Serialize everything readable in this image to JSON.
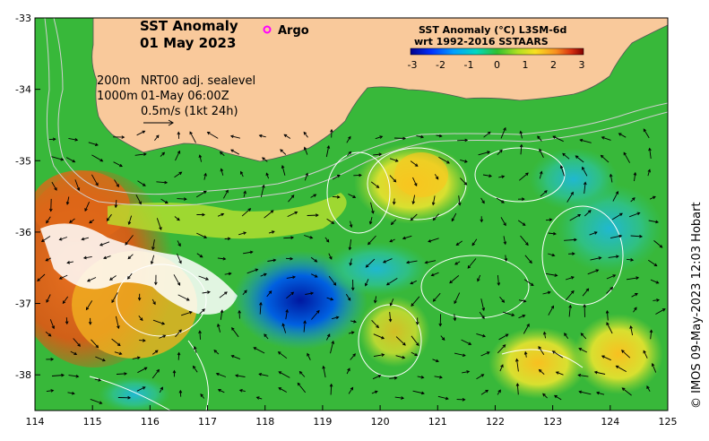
{
  "title_line1": "SST Anomaly",
  "title_line2": "01 May 2023",
  "argo_label": "Argo",
  "colorbar": {
    "title_line1": "SST Anomaly (°C) L3SM-6d",
    "title_line2": "wrt 1992-2016 SSTAARS",
    "ticks": [
      "-3",
      "-2",
      "-1",
      "0",
      "1",
      "2",
      "3"
    ],
    "range": [
      -3,
      3
    ]
  },
  "legend": {
    "depth_200": "200m",
    "depth_1000": "1000m",
    "sealevel_label": "NRT00 adj. sealevel",
    "time_label": "01-May 06:00Z",
    "scale_label": "0.5m/s (1kt 24h)"
  },
  "credit": "© IMOS 09-May-2023 12:03 Hobart",
  "axes": {
    "x_ticks": [
      "114",
      "115",
      "116",
      "117",
      "118",
      "119",
      "120",
      "121",
      "122",
      "123",
      "124",
      "125"
    ],
    "y_ticks": [
      "-33",
      "-34",
      "-35",
      "-36",
      "-37",
      "-38"
    ],
    "lon_range": [
      114,
      125
    ],
    "lat_range": [
      -38.5,
      -33
    ]
  },
  "colors": {
    "land": "#f9c99b",
    "base_sea": "#36b83a",
    "isobath": "#d0d0d0",
    "contour": "#ffffff",
    "argo_marker": "#ff00ff"
  }
}
